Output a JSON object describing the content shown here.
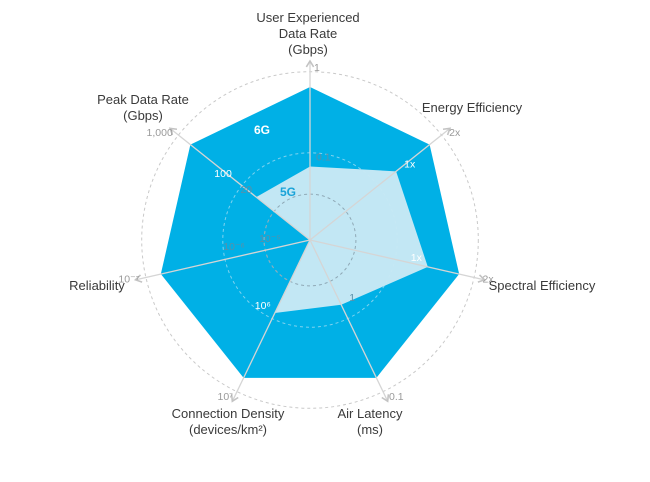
{
  "chart_data": {
    "type": "radar",
    "title": "",
    "colors": {
      "6G": "#00b0e6",
      "5G": "#c8e8f4",
      "grid": "#c9c9c9",
      "axis": "#d5d5d5",
      "label": "#3a3a3a"
    },
    "axes": [
      {
        "label_lines": [
          "User Experienced",
          "Data Rate",
          "(Gbps)"
        ],
        "ticks": [
          {
            "text": "0.1",
            "r": 0.48,
            "style": "in"
          },
          {
            "text": "1",
            "r": 1.0,
            "style": "out"
          }
        ]
      },
      {
        "label_lines": [
          "Energy Efficiency"
        ],
        "ticks": [
          {
            "text": "1x",
            "r": 0.72,
            "style": "in"
          },
          {
            "text": "2x",
            "r": 1.0,
            "style": "out"
          }
        ]
      },
      {
        "label_lines": [
          "Spectral Efficiency"
        ],
        "ticks": [
          {
            "text": "1x",
            "r": 0.79,
            "style": "in"
          },
          {
            "text": "2x",
            "r": 1.0,
            "style": "out"
          }
        ]
      },
      {
        "label_lines": [
          "Air Latency",
          "(ms)"
        ],
        "ticks": [
          {
            "text": "1",
            "r": 0.47,
            "style": "in"
          },
          {
            "text": "0.1",
            "r": 1.0,
            "style": "out"
          }
        ]
      },
      {
        "label_lines": [
          "Connection Density",
          "(devices/km²)"
        ],
        "ticks": [
          {
            "text": "10⁶",
            "r": 0.53,
            "style": "in"
          },
          {
            "text": "10⁷",
            "r": 1.0,
            "style": "out"
          }
        ]
      },
      {
        "label_lines": [
          "Reliability"
        ],
        "ticks": [
          {
            "text": "10⁻⁵",
            "r": 0.17,
            "style": "in"
          },
          {
            "text": "10⁻⁶",
            "r": 0.41,
            "style": "in"
          },
          {
            "text": "10⁻⁷",
            "r": 1.0,
            "style": "out"
          }
        ]
      },
      {
        "label_lines": [
          "Peak Data Rate",
          "(Gbps)"
        ],
        "ticks": [
          {
            "text": "20",
            "r": 0.45,
            "style": "in"
          },
          {
            "text": "100",
            "r": 0.62,
            "style": "in"
          },
          {
            "text": "1,000",
            "r": 1.0,
            "style": "out"
          }
        ]
      }
    ],
    "series": [
      {
        "name": "6G",
        "values": [
          1.0,
          1.0,
          1.0,
          1.0,
          1.0,
          1.0,
          1.0
        ]
      },
      {
        "name": "5G",
        "values": [
          0.48,
          0.72,
          0.79,
          0.47,
          0.53,
          0.0,
          0.45
        ]
      }
    ]
  }
}
